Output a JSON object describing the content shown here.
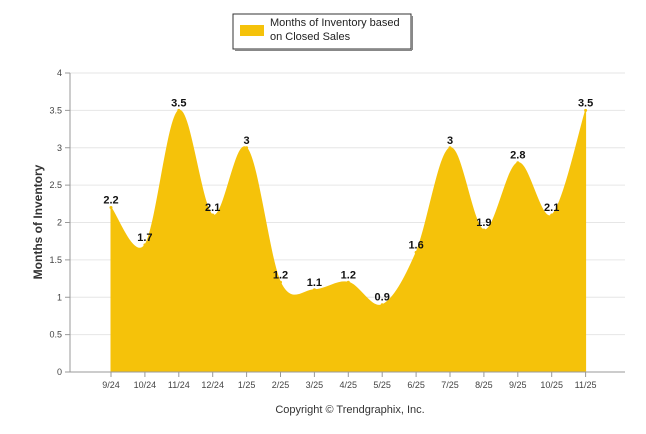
{
  "chart_data": {
    "type": "area",
    "title": "",
    "xlabel": "",
    "ylabel": "Months of Inventory",
    "ylim": [
      0,
      4
    ],
    "yticks": [
      "0",
      "0.5",
      "1",
      "1.5",
      "2",
      "2.5",
      "3",
      "3.5",
      "4"
    ],
    "categories": [
      "9/24",
      "10/24",
      "11/24",
      "12/24",
      "1/25",
      "2/25",
      "3/25",
      "4/25",
      "5/25",
      "6/25",
      "7/25",
      "8/25",
      "9/25",
      "10/25",
      "11/25"
    ],
    "series": [
      {
        "name": "Months of Inventory based on Closed Sales",
        "values": [
          2.2,
          1.7,
          3.5,
          2.1,
          3,
          1.2,
          1.1,
          1.2,
          0.9,
          1.6,
          3,
          1.9,
          2.8,
          2.1,
          3.5
        ],
        "labels": [
          "2.2",
          "1.7",
          "3.5",
          "2.1",
          "3",
          "1.2",
          "1.1",
          "1.2",
          "0.9",
          "1.6",
          "3",
          "1.9",
          "2.8",
          "2.1",
          "3.5"
        ]
      }
    ],
    "legend": {
      "position": "top-center",
      "line1": "Months of Inventory based",
      "line2": "on Closed Sales"
    },
    "grid": true,
    "copyright": "Copyright © Trendgraphix, Inc."
  },
  "colors": {
    "area": "#f5c20a",
    "grid": "#e6e6e6",
    "axis": "#999999"
  }
}
